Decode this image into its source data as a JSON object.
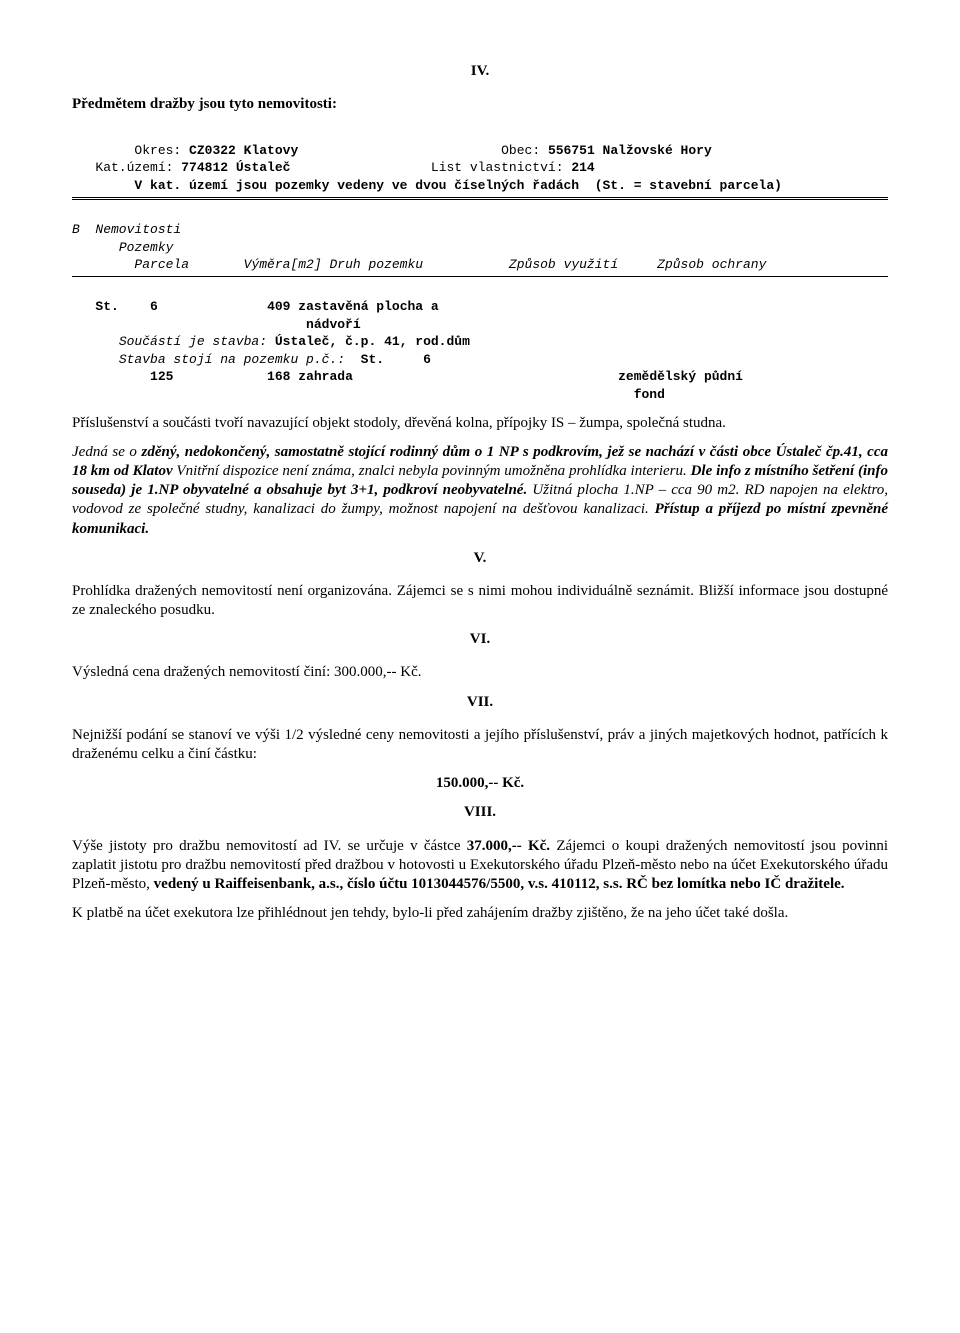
{
  "section_iv": {
    "num": "IV.",
    "heading": "Předmětem dražby jsou tyto nemovitosti:",
    "cadastral_header": {
      "line1_left_label": "Okres:",
      "line1_left_val": "CZ0322 Klatovy",
      "line1_right_label": "Obec:",
      "line1_right_val": "556751 Nalžovské Hory",
      "line2_left_label": "Kat.území:",
      "line2_left_val": "774812 Ústaleč",
      "line2_right_label": "List vlastnictví:",
      "line2_right_val": "214",
      "line3": "V kat. území jsou pozemky vedeny ve dvou číselných řadách  (St. = stavební parcela)"
    },
    "block_b": {
      "label": "B  Nemovitosti",
      "sub1": "Pozemky",
      "cols": {
        "c1": "Parcela",
        "c2": "Výměra[m2]",
        "c3": "Druh pozemku",
        "c4": "Způsob využití",
        "c5": "Způsob ochrany"
      },
      "row1": {
        "st": "St.",
        "num": "6",
        "vymera": "409",
        "druh1": "zastavěná plocha a",
        "druh2": "nádvoří"
      },
      "soucasti_lbl": "Součástí je stavba:",
      "soucasti_val": "Ústaleč, č.p. 41, rod.dům",
      "stavba_lbl": "Stavba stojí na pozemku p.č.:",
      "stavba_val_st": "St.",
      "stavba_val_num": "6",
      "row2": {
        "num": "125",
        "vymera": "168",
        "druh": "zahrada",
        "ochrana1": "zemědělský půdní",
        "ochrana2": "fond"
      }
    },
    "paragraph1": "Příslušenství a součásti tvoří navazující objekt stodoly, dřevěná kolna, přípojky IS – žumpa, společná studna.",
    "paragraph2_pre": "Jedná se o ",
    "paragraph2_bold": "zděný, nedokončený, samostatně stojící rodinný dům o 1 NP s podkrovím, jež se nachází v části obce Ústaleč čp.41, cca 18 km od Klatov",
    "paragraph2_mid": " Vnitřní dispozice není známa, znalci nebyla povinným umožněna prohlídka interieru. ",
    "paragraph2_bold2": "Dle info z místního šetření (info souseda) je 1.NP obyvatelné a obsahuje byt 3+1, podkroví neobyvatelné.",
    "paragraph2_mid2": " Užitná plocha 1.NP – cca 90 m2. RD napojen na elektro, vodovod ze společné studny, kanalizaci do žumpy, možnost napojení na dešťovou kanalizaci. ",
    "paragraph2_bold3": "Přístup a příjezd po místní zpevněné komunikaci."
  },
  "section_v": {
    "num": "V.",
    "text": "Prohlídka dražených nemovitostí není organizována. Zájemci se s  nimi mohou individuálně seznámit. Bližší informace jsou dostupné ze znaleckého posudku."
  },
  "section_vi": {
    "num": "VI.",
    "text": "Výsledná cena dražených nemovitostí činí: 300.000,-- Kč."
  },
  "section_vii": {
    "num": "VII.",
    "text": "Nejnižší podání se stanoví ve výši 1/2 výsledné ceny nemovitosti a jejího příslušenství, práv a jiných majetkových hodnot, patřících k  draženému celku a činí částku:",
    "amount": "150.000,-- Kč."
  },
  "section_viii": {
    "num": "VIII.",
    "p1_pre": "Výše jistoty pro dražbu nemovitostí  ad IV. se určuje v částce ",
    "p1_bold1": "37.000,-- Kč.",
    "p1_mid": " Zájemci o koupi dražených nemovitostí jsou povinni zaplatit jistotu pro dražbu nemovitostí před dražbou v  hotovosti u Exekutorského úřadu Plzeň-město nebo na účet Exekutorského úřadu Plzeň-město, ",
    "p1_bold2": "vedený u Raiffeisenbank, a.s., číslo účtu 1013044576/5500, v.s. 410112, s.s. RČ bez lomítka nebo IČ dražitele.",
    "p2": "K  platbě na účet exekutora lze přihlédnout jen tehdy, bylo-li před zahájením dražby zjištěno, že na jeho účet také došla."
  }
}
